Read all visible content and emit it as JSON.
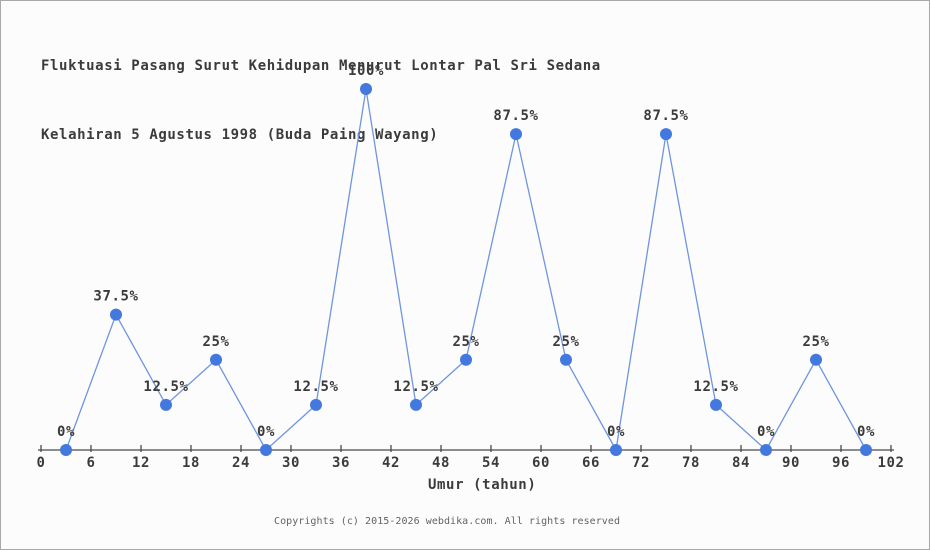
{
  "page": {
    "title_line1": "Fluktuasi Pasang Surut Kehidupan Menurut Lontar Pal Sri Sedana",
    "title_line2": "Kelahiran 5 Agustus 1998 (Buda Paing Wayang)",
    "footer": "Copyrights (c) 2015-2026 webdika.com. All rights reserved"
  },
  "chart_data": {
    "type": "line",
    "title": "Fluktuasi Pasang Surut Kehidupan Menurut Lontar Pal Sri Sedana Kelahiran 5 Agustus 1998 (Buda Paing Wayang)",
    "xlabel": "Umur (tahun)",
    "ylabel": "",
    "x": [
      3,
      9,
      15,
      21,
      27,
      33,
      39,
      45,
      51,
      57,
      63,
      69,
      75,
      81,
      87,
      93,
      99
    ],
    "values": [
      0,
      37.5,
      12.5,
      25,
      0,
      12.5,
      100,
      12.5,
      25,
      87.5,
      25,
      0,
      87.5,
      12.5,
      0,
      25,
      0
    ],
    "point_labels": [
      "0%",
      "37.5%",
      "12.5%",
      "25%",
      "0%",
      "12.5%",
      "100%",
      "12.5%",
      "25%",
      "87.5%",
      "25%",
      "0%",
      "87.5%",
      "12.5%",
      "0%",
      "25%",
      "0%"
    ],
    "x_ticks": [
      0,
      6,
      12,
      18,
      24,
      30,
      36,
      42,
      48,
      54,
      60,
      66,
      72,
      78,
      84,
      90,
      96,
      102
    ],
    "xlim": [
      0,
      102
    ],
    "ylim": [
      0,
      100
    ],
    "grid": false,
    "legend": "none",
    "colors": {
      "line": "#6f95e0",
      "marker": "#4379de",
      "axis": "#4a4a4a",
      "text": "#3b3b3b",
      "footer_text": "#636363",
      "background": "#fcfcfc",
      "border": "#a8a8a8"
    }
  }
}
